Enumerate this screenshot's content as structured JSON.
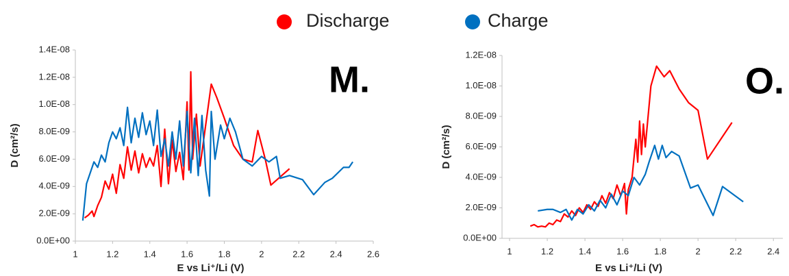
{
  "legend_title": null,
  "chart_data": [
    {
      "type": "line",
      "annotation": "M.",
      "x_label": "E vs Li⁺/Li (V)",
      "y_label": "D (cm²/s)",
      "xlim": [
        1,
        2.6
      ],
      "ylim": [
        0,
        1.4e-08
      ],
      "xticks": [
        1,
        1.2,
        1.4,
        1.6,
        1.8,
        2,
        2.2,
        2.4,
        2.6
      ],
      "yticks": [
        {
          "value": 0,
          "label": "0.0E+00"
        },
        {
          "value": 2e-09,
          "label": "2.0E-09"
        },
        {
          "value": 4e-09,
          "label": "4.0E-09"
        },
        {
          "value": 6e-09,
          "label": "6.0E-09"
        },
        {
          "value": 8e-09,
          "label": "8.0E-09"
        },
        {
          "value": 1e-08,
          "label": "1.0E-08"
        },
        {
          "value": 1.2e-08,
          "label": "1.2E-08"
        },
        {
          "value": 1.4e-08,
          "label": "1.4E-08"
        }
      ],
      "series": [
        {
          "name": "Discharge",
          "color": "#ff0000",
          "x": [
            1.05,
            1.07,
            1.09,
            1.1,
            1.12,
            1.14,
            1.16,
            1.18,
            1.2,
            1.22,
            1.24,
            1.26,
            1.28,
            1.3,
            1.32,
            1.34,
            1.36,
            1.38,
            1.4,
            1.42,
            1.44,
            1.46,
            1.48,
            1.5,
            1.52,
            1.54,
            1.56,
            1.58,
            1.6,
            1.61,
            1.62,
            1.63,
            1.65,
            1.67,
            1.7,
            1.73,
            1.76,
            1.8,
            1.85,
            1.9,
            1.95,
            1.98,
            2.02,
            2.05,
            2.1,
            2.15
          ],
          "values": [
            1.7e-09,
            1.9e-09,
            2.2e-09,
            1.8e-09,
            2.6e-09,
            3.2e-09,
            4.4e-09,
            3.8e-09,
            4.9e-09,
            3.5e-09,
            5.6e-09,
            4.6e-09,
            6.9e-09,
            5.2e-09,
            6.6e-09,
            5e-09,
            6.4e-09,
            5.4e-09,
            6.1e-09,
            5.5e-09,
            7e-09,
            4e-09,
            8.2e-09,
            4.2e-09,
            7.4e-09,
            5.1e-09,
            6.5e-09,
            4.5e-09,
            1.02e-08,
            5.2e-09,
            1.24e-08,
            6e-09,
            9.3e-09,
            5.5e-09,
            8.5e-09,
            1.15e-08,
            1.05e-08,
            9e-09,
            7e-09,
            6e-09,
            5.8e-09,
            8.1e-09,
            6e-09,
            4.1e-09,
            4.7e-09,
            5.3e-09
          ]
        },
        {
          "name": "Charge",
          "color": "#0070c0",
          "x": [
            1.04,
            1.06,
            1.08,
            1.1,
            1.12,
            1.14,
            1.16,
            1.18,
            1.2,
            1.22,
            1.24,
            1.26,
            1.28,
            1.3,
            1.32,
            1.34,
            1.36,
            1.38,
            1.4,
            1.42,
            1.44,
            1.46,
            1.48,
            1.5,
            1.52,
            1.54,
            1.56,
            1.58,
            1.6,
            1.62,
            1.64,
            1.66,
            1.68,
            1.7,
            1.72,
            1.73,
            1.75,
            1.78,
            1.8,
            1.83,
            1.86,
            1.9,
            1.95,
            2.0,
            2.04,
            2.08,
            2.1,
            2.15,
            2.22,
            2.28,
            2.34,
            2.38,
            2.44,
            2.47,
            2.49
          ],
          "values": [
            1.5e-09,
            4.2e-09,
            5e-09,
            5.8e-09,
            5.4e-09,
            6.3e-09,
            5.8e-09,
            7.2e-09,
            8e-09,
            7.5e-09,
            8.3e-09,
            7e-09,
            9.8e-09,
            7.2e-09,
            9e-09,
            7.6e-09,
            9.4e-09,
            7.8e-09,
            8.8e-09,
            7e-09,
            9.6e-09,
            6.2e-09,
            7.5e-09,
            5.5e-09,
            8e-09,
            6e-09,
            8.8e-09,
            5.5e-09,
            9.5e-09,
            5e-09,
            9e-09,
            4.8e-09,
            9.2e-09,
            5.2e-09,
            3.3e-09,
            9.5e-09,
            6e-09,
            8.5e-09,
            7.5e-09,
            9e-09,
            8e-09,
            6e-09,
            5.5e-09,
            6.2e-09,
            5.8e-09,
            6.2e-09,
            4.6e-09,
            4.8e-09,
            4.5e-09,
            3.4e-09,
            4.3e-09,
            4.6e-09,
            5.4e-09,
            5.4e-09,
            5.8e-09
          ]
        }
      ]
    },
    {
      "type": "line",
      "annotation": "O.",
      "x_label": "E vs Li⁺/Li (V)",
      "y_label": "D (cm²/s)",
      "xlim": [
        0.96,
        2.45
      ],
      "ylim": [
        0,
        1.2e-08
      ],
      "xticks": [
        1,
        1.2,
        1.4,
        1.6,
        1.8,
        2,
        2.2,
        2.4
      ],
      "yticks": [
        {
          "value": 0,
          "label": "0.0E+00"
        },
        {
          "value": 2e-09,
          "label": "2.0E-09"
        },
        {
          "value": 4e-09,
          "label": "4.0E-09"
        },
        {
          "value": 6e-09,
          "label": "6.0E-09"
        },
        {
          "value": 8e-09,
          "label": "8.0E-09"
        },
        {
          "value": 1e-08,
          "label": "1.0E-08"
        },
        {
          "value": 1.2e-08,
          "label": "1.2E-08"
        }
      ],
      "series": [
        {
          "color": "#ff0000",
          "x": [
            1.11,
            1.13,
            1.15,
            1.17,
            1.19,
            1.21,
            1.23,
            1.25,
            1.27,
            1.29,
            1.31,
            1.33,
            1.35,
            1.37,
            1.39,
            1.41,
            1.43,
            1.45,
            1.47,
            1.49,
            1.51,
            1.53,
            1.55,
            1.57,
            1.59,
            1.61,
            1.62,
            1.63,
            1.65,
            1.67,
            1.68,
            1.69,
            1.7,
            1.71,
            1.72,
            1.75,
            1.78,
            1.82,
            1.85,
            1.9,
            1.95,
            2.0,
            2.05,
            2.18
          ],
          "values": [
            8e-10,
            9e-10,
            7.5e-10,
            8e-10,
            7.5e-10,
            1e-09,
            9e-10,
            1.2e-09,
            1.1e-09,
            1.6e-09,
            1.4e-09,
            1.8e-09,
            1.5e-09,
            2e-09,
            1.7e-09,
            2.2e-09,
            1.9e-09,
            2.4e-09,
            2.1e-09,
            2.8e-09,
            2.3e-09,
            3e-09,
            2.6e-09,
            3.5e-09,
            2.8e-09,
            3.6e-09,
            1.6e-09,
            3.2e-09,
            4e-09,
            6.5e-09,
            5e-09,
            7.7e-09,
            5.5e-09,
            7.5e-09,
            6e-09,
            1e-08,
            1.13e-08,
            1.06e-08,
            1.1e-08,
            9.8e-09,
            8.9e-09,
            8.4e-09,
            5.2e-09,
            7.6e-09
          ]
        },
        {
          "color": "#0070c0",
          "x": [
            1.15,
            1.2,
            1.23,
            1.27,
            1.3,
            1.33,
            1.36,
            1.39,
            1.42,
            1.45,
            1.48,
            1.51,
            1.54,
            1.57,
            1.6,
            1.63,
            1.66,
            1.69,
            1.72,
            1.74,
            1.77,
            1.79,
            1.81,
            1.83,
            1.86,
            1.9,
            1.96,
            2.0,
            2.08,
            2.13,
            2.24
          ],
          "values": [
            1.8e-09,
            1.9e-09,
            1.9e-09,
            1.7e-09,
            1.9e-09,
            1.2e-09,
            1.9e-09,
            1.6e-09,
            2.2e-09,
            1.8e-09,
            2.5e-09,
            2e-09,
            2.9e-09,
            2.2e-09,
            3.1e-09,
            2.8e-09,
            4e-09,
            3.5e-09,
            4.2e-09,
            5e-09,
            6.1e-09,
            5.2e-09,
            6.1e-09,
            5.3e-09,
            5.7e-09,
            5.4e-09,
            3.3e-09,
            3.5e-09,
            1.5e-09,
            3.4e-09,
            2.4e-09
          ]
        }
      ]
    }
  ]
}
